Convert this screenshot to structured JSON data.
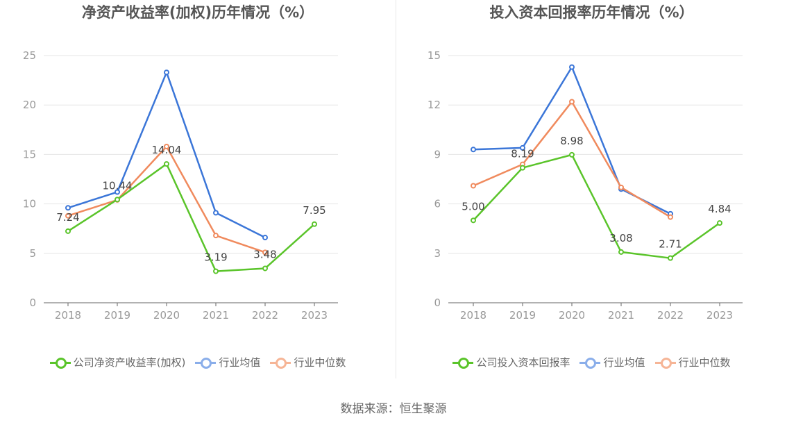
{
  "colors": {
    "company": "#5ac42a",
    "industry_avg": "#3b76d8",
    "industry_median": "#f08a5d",
    "company_legend": "#5ac42a",
    "avg_legend": "#8aaeea",
    "median_legend": "#f6b596"
  },
  "source": "数据来源：恒生聚源",
  "chart_data": [
    {
      "type": "line",
      "title": "净资产收益率(加权)历年情况（%）",
      "categories": [
        "2018",
        "2019",
        "2020",
        "2021",
        "2022",
        "2023"
      ],
      "ylim": [
        0,
        25
      ],
      "yticks": [
        0,
        5,
        10,
        15,
        20,
        25
      ],
      "ytick_labels": [
        "0",
        "5",
        "10",
        "15",
        "20",
        "25"
      ],
      "grid": true,
      "legend_position": "bottom",
      "series": [
        {
          "name": "公司净资产收益率(加权)",
          "key": "company",
          "values": [
            7.24,
            10.44,
            14.04,
            3.19,
            3.48,
            7.95
          ],
          "labels": [
            "7.24",
            "10.44",
            "14.04",
            "3.19",
            "3.48",
            "7.95"
          ]
        },
        {
          "name": "行业均值",
          "key": "industry_avg",
          "values": [
            9.6,
            11.2,
            23.3,
            9.1,
            6.6,
            null
          ]
        },
        {
          "name": "行业中位数",
          "key": "industry_median",
          "values": [
            8.8,
            10.4,
            15.8,
            6.8,
            5.1,
            null
          ]
        }
      ]
    },
    {
      "type": "line",
      "title": "投入资本回报率历年情况（%）",
      "categories": [
        "2018",
        "2019",
        "2020",
        "2021",
        "2022",
        "2023"
      ],
      "ylim": [
        0,
        15
      ],
      "yticks": [
        0,
        3,
        6,
        9,
        12,
        15
      ],
      "ytick_labels": [
        "0",
        "3",
        "6",
        "9",
        "12",
        "15"
      ],
      "grid": true,
      "legend_position": "bottom",
      "series": [
        {
          "name": "公司投入资本回报率",
          "key": "company",
          "values": [
            5.0,
            8.19,
            8.98,
            3.08,
            2.71,
            4.84
          ],
          "labels": [
            "5.00",
            "8.19",
            "8.98",
            "3.08",
            "2.71",
            "4.84"
          ]
        },
        {
          "name": "行业均值",
          "key": "industry_avg",
          "values": [
            9.3,
            9.4,
            14.3,
            6.9,
            5.4,
            null
          ]
        },
        {
          "name": "行业中位数",
          "key": "industry_median",
          "values": [
            7.1,
            8.4,
            12.2,
            7.0,
            5.2,
            null
          ]
        }
      ]
    }
  ]
}
